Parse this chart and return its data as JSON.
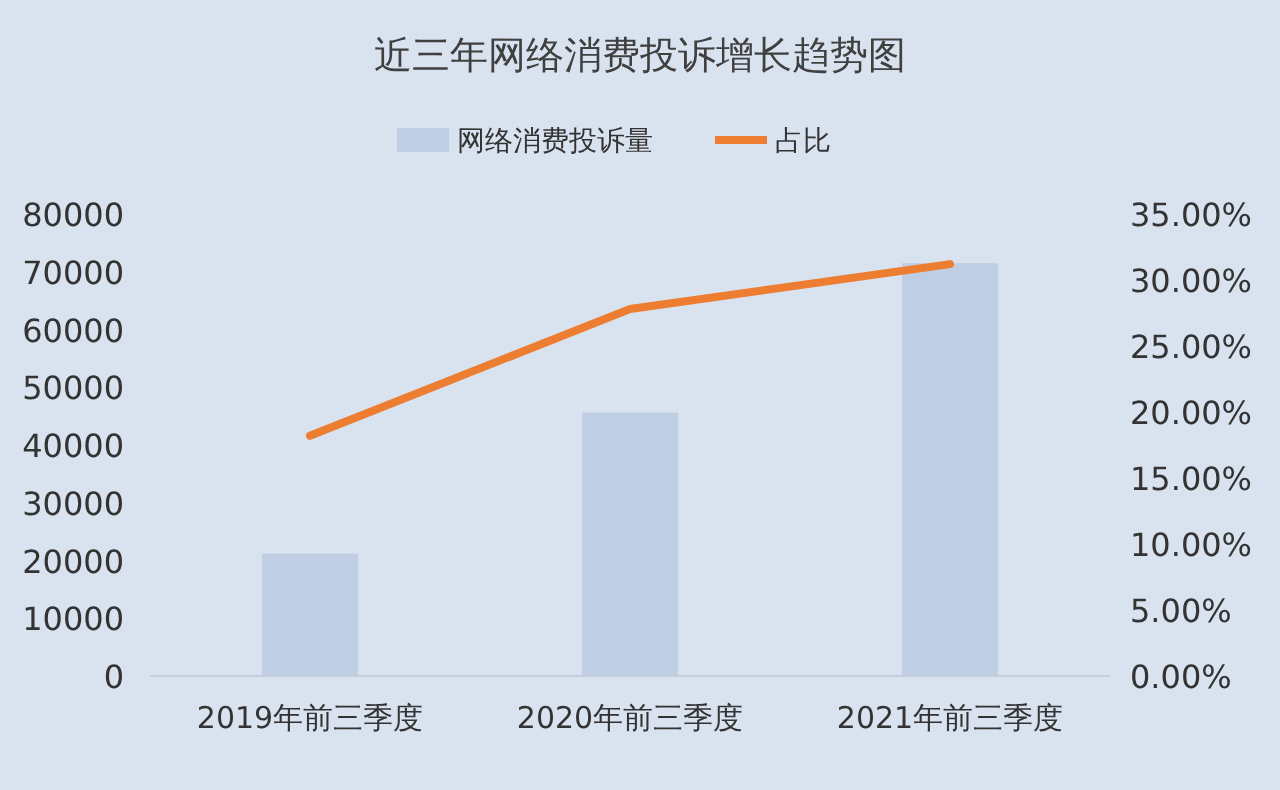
{
  "chart_data": {
    "type": "bar",
    "title": "近三年网络消费投诉增长趋势图",
    "categories": [
      "2019年前三季度",
      "2020年前三季度",
      "2021年前三季度"
    ],
    "series": [
      {
        "name": "网络消费投诉量",
        "color": "#bfcee3",
        "values": [
          21200,
          45600,
          71500
        ]
      },
      {
        "name": "占比",
        "type": "line",
        "axis": "y2",
        "color": "#ed7d31",
        "values": [
          18.2,
          27.8,
          31.2
        ]
      }
    ],
    "ylim": [
      0,
      80000
    ],
    "yticks": [
      0,
      10000,
      20000,
      30000,
      40000,
      50000,
      60000,
      70000,
      80000
    ],
    "y2lim": [
      0,
      35
    ],
    "y2ticks": [
      {
        "value": 0,
        "label": "0.00%"
      },
      {
        "value": 5,
        "label": "5.00%"
      },
      {
        "value": 10,
        "label": "10.00%"
      },
      {
        "value": 15,
        "label": "15.00%"
      },
      {
        "value": 20,
        "label": "20.00%"
      },
      {
        "value": 25,
        "label": "25.00%"
      },
      {
        "value": 30,
        "label": "30.00%"
      },
      {
        "value": 35,
        "label": "35.00%"
      }
    ],
    "legend": "top",
    "grid": false,
    "marker": "none"
  }
}
